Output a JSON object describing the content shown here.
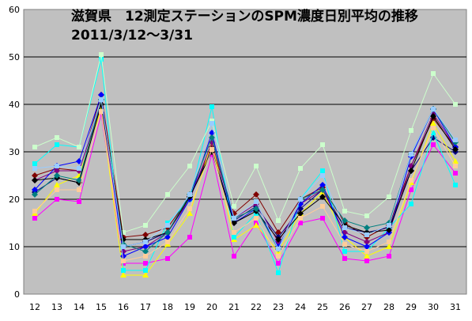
{
  "chart_data": {
    "type": "line",
    "title": "滋賀県　12測定ステーションのSPM濃度日別平均の推移",
    "subtitle": "2011/3/12～3/31",
    "xlabel": "",
    "ylabel": "",
    "categories": [
      "12",
      "13",
      "14",
      "15",
      "16",
      "17",
      "18",
      "19",
      "20",
      "21",
      "22",
      "23",
      "24",
      "25",
      "26",
      "27",
      "28",
      "29",
      "30",
      "31"
    ],
    "ylim": [
      0,
      60
    ],
    "yticks": [
      "0",
      "10",
      "20",
      "30",
      "40",
      "50",
      "60"
    ],
    "grid": true,
    "background": "#c0c0c0",
    "series": [
      {
        "color": "#800000",
        "marker": "diamond",
        "values": [
          25,
          26.5,
          26,
          42,
          12,
          12.5,
          14,
          20.5,
          31,
          17,
          21,
          13,
          20,
          22.5,
          15,
          12,
          14.5,
          27,
          37,
          31
        ]
      },
      {
        "color": "#000080",
        "marker": "diamond",
        "values": [
          21.5,
          24.5,
          23.5,
          41,
          10,
          11,
          13,
          20.5,
          30.5,
          15.5,
          18.5,
          12,
          18,
          22,
          14,
          13,
          14,
          26,
          33,
          30
        ]
      },
      {
        "color": "#ff00ff",
        "marker": "square",
        "values": [
          16,
          20,
          19.5,
          38,
          6.5,
          6.5,
          7.5,
          12,
          29.5,
          8,
          15,
          6.5,
          15,
          16,
          7.5,
          7,
          8,
          22,
          31.5,
          25.5
        ]
      },
      {
        "color": "#ffff00",
        "marker": "triangle",
        "values": [
          17,
          23,
          25,
          39,
          4,
          4,
          10.5,
          17,
          32,
          11.5,
          14.5,
          9,
          17,
          21.5,
          12,
          8,
          10,
          23.5,
          36,
          28
        ]
      },
      {
        "color": "#00ffff",
        "marker": "square",
        "values": [
          27.5,
          31.5,
          31,
          49.5,
          5,
          5,
          15,
          20,
          39.5,
          12,
          17,
          4.5,
          20,
          26,
          9,
          9,
          14,
          19,
          34,
          23
        ]
      },
      {
        "color": "#800080",
        "marker": "diamond",
        "values": [
          24,
          26,
          26,
          40,
          9,
          10,
          13,
          20,
          32,
          16,
          19,
          11,
          19,
          22,
          13,
          11,
          13,
          27,
          38,
          31
        ]
      },
      {
        "color": "#ccffcc",
        "marker": "square",
        "values": [
          31,
          33,
          31,
          50.5,
          13,
          14.5,
          21,
          27,
          36.5,
          18.5,
          27,
          15.5,
          26.5,
          31.5,
          17.5,
          16.5,
          20.5,
          34.5,
          46.5,
          40
        ]
      },
      {
        "color": "#0000ff",
        "marker": "diamond",
        "values": [
          22,
          27,
          28,
          42,
          8,
          10,
          12,
          20,
          34,
          15,
          18,
          10,
          19,
          23,
          12,
          10,
          13,
          29,
          39,
          31
        ]
      },
      {
        "color": "#000000",
        "marker": "diamond",
        "values": [
          24,
          24.5,
          23.5,
          40,
          11.5,
          11.5,
          13,
          20.5,
          30,
          15,
          17.5,
          11.5,
          17,
          20.5,
          14.5,
          13,
          13.5,
          26,
          37.5,
          30.5
        ]
      },
      {
        "color": "#008080",
        "marker": "diamond",
        "values": [
          21,
          25,
          24,
          41,
          10.5,
          9,
          13,
          21,
          33,
          16,
          18,
          9.5,
          20,
          22,
          15.5,
          14,
          15,
          29.5,
          39,
          32
        ]
      },
      {
        "color": "#ffcc99",
        "marker": "square",
        "values": [
          17.5,
          22,
          22,
          38.5,
          7,
          8,
          11,
          18,
          30.5,
          13,
          16,
          8,
          16,
          18.5,
          10.5,
          9,
          11,
          24,
          35,
          27
        ]
      },
      {
        "color": "#99ccff",
        "marker": "square",
        "values": [
          26.5,
          27,
          26.5,
          41,
          10,
          11,
          14.5,
          21,
          36,
          16,
          19.5,
          9.5,
          20,
          25,
          14,
          12.5,
          14.5,
          29.5,
          39,
          32.5
        ]
      }
    ]
  }
}
